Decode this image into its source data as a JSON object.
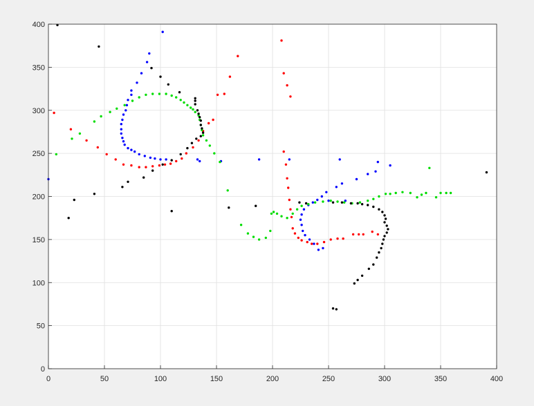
{
  "chart_data": {
    "type": "scatter",
    "title": "",
    "xlabel": "",
    "ylabel": "",
    "xlim": [
      0,
      400
    ],
    "ylim": [
      0,
      400
    ],
    "grid": true,
    "legend": "none",
    "x_ticks": [
      "0",
      "50",
      "100",
      "150",
      "200",
      "250",
      "300",
      "350",
      "400"
    ],
    "y_ticks": [
      "0",
      "50",
      "100",
      "150",
      "200",
      "250",
      "300",
      "350",
      "400"
    ],
    "series": [
      {
        "color": "#0000ff",
        "points": [
          [
            102,
            391
          ],
          [
            90,
            366
          ],
          [
            88,
            356
          ],
          [
            83,
            343
          ],
          [
            79,
            332
          ],
          [
            74,
            323
          ],
          [
            74,
            318
          ],
          [
            71,
            312
          ],
          [
            70,
            306
          ],
          [
            69,
            300
          ],
          [
            67,
            295
          ],
          [
            66,
            289
          ],
          [
            65,
            284
          ],
          [
            65,
            278
          ],
          [
            65,
            273
          ],
          [
            66,
            268
          ],
          [
            67,
            264
          ],
          [
            68,
            260
          ],
          [
            71,
            256
          ],
          [
            74,
            254
          ],
          [
            77,
            252
          ],
          [
            81,
            249
          ],
          [
            86,
            247
          ],
          [
            91,
            245
          ],
          [
            95,
            244
          ],
          [
            100,
            243
          ],
          [
            105,
            243
          ],
          [
            133,
            243
          ],
          [
            135,
            241
          ],
          [
            154,
            241
          ],
          [
            188,
            243
          ],
          [
            215,
            243
          ],
          [
            0,
            220
          ],
          [
            260,
            243
          ],
          [
            275,
            220
          ],
          [
            285,
            226
          ],
          [
            292,
            229
          ],
          [
            294,
            240
          ],
          [
            305,
            236
          ],
          [
            248,
            205
          ],
          [
            244,
            200
          ],
          [
            240,
            196
          ],
          [
            236,
            193
          ],
          [
            232,
            190
          ],
          [
            228,
            185
          ],
          [
            226,
            179
          ],
          [
            225,
            173
          ],
          [
            226,
            167
          ],
          [
            227,
            160
          ],
          [
            229,
            155
          ],
          [
            233,
            150
          ],
          [
            237,
            145
          ],
          [
            241,
            138
          ],
          [
            245,
            140
          ],
          [
            250,
            195
          ],
          [
            257,
            211
          ],
          [
            262,
            215
          ],
          [
            265,
            195
          ]
        ]
      },
      {
        "color": "#ff0000",
        "points": [
          [
            5,
            297
          ],
          [
            20,
            278
          ],
          [
            34,
            265
          ],
          [
            44,
            257
          ],
          [
            52,
            249
          ],
          [
            60,
            243
          ],
          [
            67,
            237
          ],
          [
            74,
            236
          ],
          [
            81,
            234
          ],
          [
            87,
            234
          ],
          [
            93,
            235
          ],
          [
            99,
            236
          ],
          [
            104,
            237
          ],
          [
            109,
            238
          ],
          [
            114,
            241
          ],
          [
            119,
            244
          ],
          [
            123,
            250
          ],
          [
            129,
            257
          ],
          [
            134,
            265
          ],
          [
            138,
            276
          ],
          [
            143,
            285
          ],
          [
            147,
            289
          ],
          [
            151,
            318
          ],
          [
            157,
            319
          ],
          [
            162,
            339
          ],
          [
            169,
            363
          ],
          [
            208,
            381
          ],
          [
            210,
            343
          ],
          [
            213,
            329
          ],
          [
            216,
            316
          ],
          [
            210,
            252
          ],
          [
            212,
            237
          ],
          [
            213,
            221
          ],
          [
            214,
            210
          ],
          [
            215,
            196
          ],
          [
            216,
            185
          ],
          [
            217,
            176
          ],
          [
            218,
            163
          ],
          [
            220,
            157
          ],
          [
            223,
            152
          ],
          [
            226,
            149
          ],
          [
            231,
            147
          ],
          [
            235,
            145
          ],
          [
            240,
            145
          ],
          [
            246,
            147
          ],
          [
            252,
            150
          ],
          [
            258,
            151
          ],
          [
            263,
            151
          ],
          [
            272,
            156
          ],
          [
            277,
            156
          ],
          [
            281,
            156
          ],
          [
            289,
            159
          ],
          [
            294,
            156
          ]
        ]
      },
      {
        "color": "#00dd00",
        "points": [
          [
            7,
            249
          ],
          [
            21,
            267
          ],
          [
            28,
            273
          ],
          [
            41,
            287
          ],
          [
            47,
            293
          ],
          [
            55,
            298
          ],
          [
            61,
            302
          ],
          [
            68,
            306
          ],
          [
            75,
            311
          ],
          [
            81,
            315
          ],
          [
            87,
            318
          ],
          [
            93,
            319
          ],
          [
            99,
            319
          ],
          [
            105,
            319
          ],
          [
            110,
            317
          ],
          [
            114,
            315
          ],
          [
            118,
            312
          ],
          [
            121,
            309
          ],
          [
            124,
            306
          ],
          [
            127,
            303
          ],
          [
            129,
            301
          ],
          [
            131,
            298
          ],
          [
            134,
            294
          ],
          [
            135,
            289
          ],
          [
            136,
            283
          ],
          [
            137,
            277
          ],
          [
            138,
            271
          ],
          [
            141,
            265
          ],
          [
            144,
            259
          ],
          [
            148,
            250
          ],
          [
            153,
            240
          ],
          [
            160,
            207
          ],
          [
            172,
            167
          ],
          [
            178,
            157
          ],
          [
            183,
            153
          ],
          [
            188,
            150
          ],
          [
            194,
            152
          ],
          [
            198,
            160
          ],
          [
            201,
            182
          ],
          [
            199,
            180
          ],
          [
            204,
            180
          ],
          [
            208,
            177
          ],
          [
            213,
            175
          ],
          [
            218,
            180
          ],
          [
            222,
            185
          ],
          [
            226,
            189
          ],
          [
            232,
            191
          ],
          [
            238,
            193
          ],
          [
            245,
            194
          ],
          [
            252,
            195
          ],
          [
            258,
            194
          ],
          [
            264,
            193
          ],
          [
            271,
            192
          ],
          [
            278,
            193
          ],
          [
            285,
            195
          ],
          [
            290,
            197
          ],
          [
            295,
            200
          ],
          [
            301,
            203
          ],
          [
            305,
            203
          ],
          [
            310,
            204
          ],
          [
            316,
            205
          ],
          [
            323,
            204
          ],
          [
            329,
            199
          ],
          [
            333,
            202
          ],
          [
            337,
            204
          ],
          [
            340,
            233
          ],
          [
            346,
            199
          ],
          [
            350,
            204
          ],
          [
            355,
            204
          ],
          [
            359,
            204
          ]
        ]
      },
      {
        "color": "#000000",
        "points": [
          [
            8,
            399
          ],
          [
            45,
            374
          ],
          [
            92,
            349
          ],
          [
            100,
            339
          ],
          [
            107,
            330
          ],
          [
            117,
            321
          ],
          [
            131,
            314
          ],
          [
            131,
            311
          ],
          [
            131,
            307
          ],
          [
            133,
            300
          ],
          [
            134,
            296
          ],
          [
            135,
            292
          ],
          [
            136,
            288
          ],
          [
            136,
            283
          ],
          [
            137,
            279
          ],
          [
            138,
            274
          ],
          [
            136,
            270
          ],
          [
            132,
            267
          ],
          [
            128,
            262
          ],
          [
            124,
            256
          ],
          [
            118,
            249
          ],
          [
            110,
            242
          ],
          [
            102,
            237
          ],
          [
            93,
            230
          ],
          [
            85,
            222
          ],
          [
            71,
            217
          ],
          [
            66,
            211
          ],
          [
            41,
            203
          ],
          [
            23,
            196
          ],
          [
            18,
            175
          ],
          [
            110,
            183
          ],
          [
            161,
            187
          ],
          [
            185,
            189
          ],
          [
            224,
            193
          ],
          [
            230,
            192
          ],
          [
            254,
            193
          ],
          [
            262,
            193
          ],
          [
            270,
            192
          ],
          [
            276,
            192
          ],
          [
            280,
            191
          ],
          [
            285,
            190
          ],
          [
            290,
            188
          ],
          [
            295,
            185
          ],
          [
            298,
            182
          ],
          [
            300,
            178
          ],
          [
            301,
            174
          ],
          [
            300,
            170
          ],
          [
            302,
            166
          ],
          [
            303,
            162
          ],
          [
            302,
            158
          ],
          [
            300,
            154
          ],
          [
            299,
            150
          ],
          [
            298,
            145
          ],
          [
            297,
            140
          ],
          [
            295,
            135
          ],
          [
            293,
            129
          ],
          [
            290,
            121
          ],
          [
            286,
            116
          ],
          [
            280,
            108
          ],
          [
            276,
            103
          ],
          [
            273,
            99
          ],
          [
            254,
            70
          ],
          [
            257,
            69
          ],
          [
            391,
            228
          ]
        ]
      }
    ]
  }
}
